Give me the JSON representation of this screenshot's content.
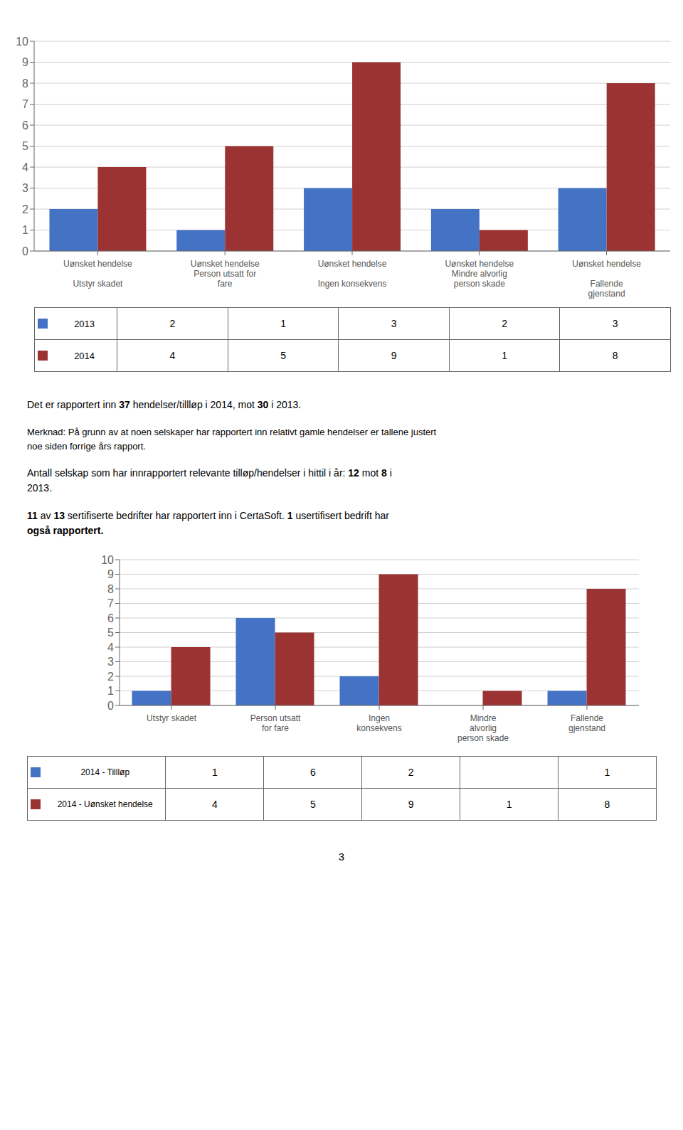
{
  "chart_data": [
    {
      "type": "bar",
      "categories": [
        "Uønsket hendelse\n\nUtstyr skadet",
        "Uønsket hendelse\nPerson utsatt for\nfare",
        "Uønsket hendelse\n\nIngen konsekvens",
        "Uønsket hendelse\nMindre alvorlig\nperson skade",
        "Uønsket hendelse\n\nFallende\ngjenstand"
      ],
      "series": [
        {
          "name": "2013",
          "color": "#4472C4",
          "values": [
            2,
            1,
            3,
            2,
            3
          ]
        },
        {
          "name": "2014",
          "color": "#9B3332",
          "values": [
            4,
            5,
            9,
            1,
            8
          ]
        }
      ],
      "ylim": [
        0,
        10
      ],
      "yticks": [
        0,
        1,
        2,
        3,
        4,
        5,
        6,
        7,
        8,
        9,
        10
      ],
      "grid": true
    },
    {
      "type": "bar",
      "categories": [
        "Utstyr skadet",
        "Person utsatt\nfor fare",
        "Ingen\nkonsekvens",
        "Mindre\nalvorlig\nperson skade",
        "Fallende\ngjenstand"
      ],
      "series": [
        {
          "name": "2014 - Tillløp",
          "color": "#4472C4",
          "values": [
            1,
            6,
            2,
            0,
            1
          ],
          "value_labels": [
            "1",
            "6",
            "2",
            null,
            "1"
          ]
        },
        {
          "name": "2014 - Uønsket hendelse",
          "color": "#9B3332",
          "values": [
            4,
            5,
            9,
            1,
            8
          ]
        }
      ],
      "ylim": [
        0,
        10
      ],
      "yticks": [
        0,
        1,
        2,
        3,
        4,
        5,
        6,
        7,
        8,
        9,
        10
      ],
      "grid": true
    }
  ],
  "annotations": [
    [
      [
        [
          "Det er rapportert inn ",
          false
        ],
        [
          "37",
          true
        ],
        [
          " hendelser/tillløp i 2014, mot ",
          false
        ],
        [
          "30",
          true
        ],
        [
          " i 2013.",
          false
        ]
      ]
    ],
    [
      [
        [
          "Merknad: På grunn av at noen selskaper har rapportert inn relativt gamle hendelser er tallene justert",
          false
        ]
      ],
      [
        [
          "noe siden forrige års rapport.",
          false
        ]
      ]
    ],
    [
      [
        [
          "Antall selskap som har innrapportert relevante tilløp/hendelser i hittil i år: ",
          false
        ],
        [
          "12",
          true
        ],
        [
          " mot ",
          false
        ],
        [
          "8",
          true
        ],
        [
          " i",
          false
        ]
      ],
      [
        [
          "2013.",
          false
        ]
      ]
    ],
    [
      [
        [
          "11",
          true
        ],
        [
          " av ",
          false
        ],
        [
          "13",
          true
        ],
        [
          " sertifiserte bedrifter har rapportert inn i CertaSoft. ",
          false
        ],
        [
          "1",
          true
        ],
        [
          " usertifisert bedrift har",
          false
        ]
      ],
      [
        [
          "også rapportert.",
          true
        ]
      ]
    ],
    [
      [
        [
          "3",
          false
        ]
      ]
    ]
  ]
}
